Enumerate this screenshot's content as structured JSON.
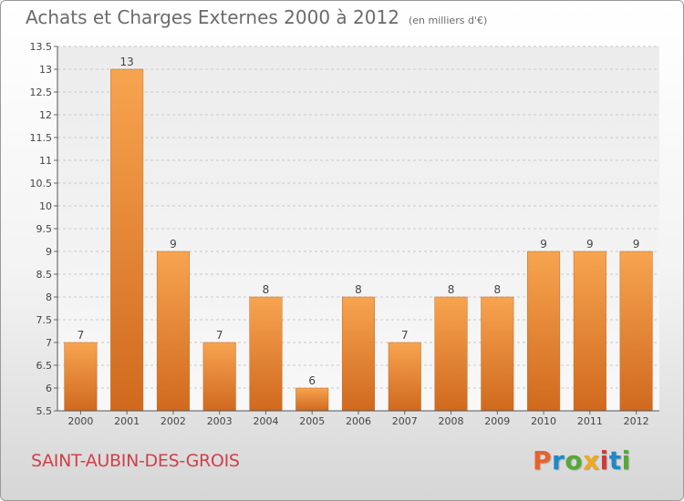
{
  "header": {
    "title": "Achats et Charges Externes 2000 à 2012",
    "unit": "(en milliers d'€)"
  },
  "footer": {
    "town": "SAINT-AUBIN-DES-GROIS",
    "logo": [
      {
        "char": "P",
        "color": "#e8612c"
      },
      {
        "char": "r",
        "color": "#1e88c8"
      },
      {
        "char": "o",
        "color": "#55a839"
      },
      {
        "char": "x",
        "color": "#f2a81d"
      },
      {
        "char": "i",
        "color": "#d03a3a"
      },
      {
        "char": "t",
        "color": "#1e88c8"
      },
      {
        "char": "i",
        "color": "#55a839"
      }
    ]
  },
  "chart_data": {
    "type": "bar",
    "title": "Achats et Charges Externes 2000 à 2012",
    "categories": [
      "2000",
      "2001",
      "2002",
      "2003",
      "2004",
      "2005",
      "2006",
      "2007",
      "2008",
      "2009",
      "2010",
      "2011",
      "2012"
    ],
    "values": [
      7,
      13,
      9,
      7,
      8,
      6,
      8,
      7,
      8,
      8,
      9,
      9,
      9
    ],
    "ylim": [
      5.5,
      13.5
    ],
    "yticks": [
      "5.5",
      "6",
      "6.5",
      "7",
      "7.5",
      "8",
      "8.5",
      "9",
      "9.5",
      "10",
      "10.5",
      "11",
      "11.5",
      "12",
      "12.5",
      "13",
      "13.5"
    ],
    "grid": true,
    "bar_color": "#f0923a"
  }
}
